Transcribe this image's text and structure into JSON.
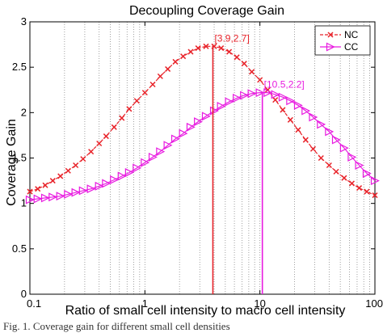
{
  "caption": "Fig. 1. Coverage gain for different small cell densities",
  "chart_data": {
    "type": "line",
    "title": "Decoupling Coverage Gain",
    "xlabel": "Ratio of small cell intensity to macro cell intensity",
    "ylabel": "Coverage Gain",
    "xscale": "log",
    "xlim": [
      0.1,
      100
    ],
    "ylim": [
      0,
      3
    ],
    "grid": "x-only dotted",
    "legend_position": "top-right",
    "xticks": [
      0.1,
      1,
      10,
      100
    ],
    "xtick_labels": [
      "0.1",
      "1",
      "10",
      "100"
    ],
    "yticks": [
      0,
      0.5,
      1,
      1.5,
      2,
      2.5,
      3
    ],
    "ytick_labels": [
      "0",
      "0.5",
      "1",
      "1.5",
      "2",
      "2.5",
      "3"
    ],
    "series": [
      {
        "name": "NC",
        "color": "#e8232a",
        "marker": "x",
        "points": [
          [
            0.1,
            1.13
          ],
          [
            0.117,
            1.16
          ],
          [
            0.136,
            1.2
          ],
          [
            0.158,
            1.25
          ],
          [
            0.184,
            1.3
          ],
          [
            0.215,
            1.36
          ],
          [
            0.25,
            1.42
          ],
          [
            0.29,
            1.49
          ],
          [
            0.34,
            1.57
          ],
          [
            0.4,
            1.66
          ],
          [
            0.46,
            1.74
          ],
          [
            0.54,
            1.84
          ],
          [
            0.63,
            1.94
          ],
          [
            0.73,
            2.04
          ],
          [
            0.85,
            2.13
          ],
          [
            1.0,
            2.22
          ],
          [
            1.17,
            2.31
          ],
          [
            1.36,
            2.4
          ],
          [
            1.58,
            2.48
          ],
          [
            1.84,
            2.56
          ],
          [
            2.15,
            2.62
          ],
          [
            2.5,
            2.67
          ],
          [
            2.9,
            2.71
          ],
          [
            3.4,
            2.73
          ],
          [
            4.0,
            2.73
          ],
          [
            4.6,
            2.71
          ],
          [
            5.4,
            2.67
          ],
          [
            6.3,
            2.61
          ],
          [
            7.3,
            2.54
          ],
          [
            8.5,
            2.45
          ],
          [
            10.0,
            2.36
          ],
          [
            11.7,
            2.25
          ],
          [
            13.6,
            2.14
          ],
          [
            15.8,
            2.03
          ],
          [
            18.4,
            1.92
          ],
          [
            21.5,
            1.81
          ],
          [
            25,
            1.7
          ],
          [
            29,
            1.6
          ],
          [
            34,
            1.5
          ],
          [
            40,
            1.42
          ],
          [
            46,
            1.35
          ],
          [
            54,
            1.28
          ],
          [
            63,
            1.22
          ],
          [
            73,
            1.17
          ],
          [
            85,
            1.13
          ],
          [
            100,
            1.09
          ]
        ]
      },
      {
        "name": "CC",
        "color": "#e81be0",
        "marker": "triangle-right",
        "points": [
          [
            0.1,
            1.04
          ],
          [
            0.117,
            1.05
          ],
          [
            0.136,
            1.06
          ],
          [
            0.158,
            1.07
          ],
          [
            0.184,
            1.08
          ],
          [
            0.215,
            1.1
          ],
          [
            0.25,
            1.12
          ],
          [
            0.29,
            1.14
          ],
          [
            0.34,
            1.16
          ],
          [
            0.4,
            1.19
          ],
          [
            0.46,
            1.22
          ],
          [
            0.54,
            1.26
          ],
          [
            0.63,
            1.3
          ],
          [
            0.73,
            1.34
          ],
          [
            0.85,
            1.39
          ],
          [
            1.0,
            1.45
          ],
          [
            1.17,
            1.51
          ],
          [
            1.36,
            1.57
          ],
          [
            1.58,
            1.64
          ],
          [
            1.84,
            1.71
          ],
          [
            2.15,
            1.77
          ],
          [
            2.5,
            1.84
          ],
          [
            2.9,
            1.9
          ],
          [
            3.4,
            1.96
          ],
          [
            4.0,
            2.02
          ],
          [
            4.6,
            2.07
          ],
          [
            5.4,
            2.12
          ],
          [
            6.3,
            2.16
          ],
          [
            7.3,
            2.19
          ],
          [
            8.5,
            2.21
          ],
          [
            10.0,
            2.22
          ],
          [
            11.7,
            2.22
          ],
          [
            13.6,
            2.2
          ],
          [
            15.8,
            2.17
          ],
          [
            18.4,
            2.13
          ],
          [
            21.5,
            2.08
          ],
          [
            25,
            2.02
          ],
          [
            29,
            1.95
          ],
          [
            34,
            1.87
          ],
          [
            40,
            1.79
          ],
          [
            46,
            1.7
          ],
          [
            54,
            1.61
          ],
          [
            63,
            1.51
          ],
          [
            73,
            1.42
          ],
          [
            85,
            1.33
          ],
          [
            100,
            1.25
          ]
        ]
      }
    ],
    "annotations": [
      {
        "label": "[3.9,2.7]",
        "x": 3.9,
        "y": 2.73,
        "color": "#e8232a"
      },
      {
        "label": "[10.5,2.2]",
        "x": 10.5,
        "y": 2.22,
        "color": "#e81be0"
      }
    ]
  }
}
